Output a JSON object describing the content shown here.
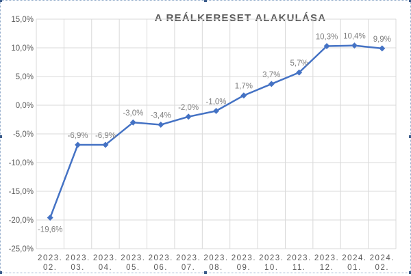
{
  "chart_data": {
    "type": "line",
    "title": "A REÁLKERESET ALAKULÁSA",
    "xlabel": "",
    "ylabel": "",
    "categories": [
      [
        "2023.",
        "02."
      ],
      [
        "2023.",
        "03."
      ],
      [
        "2023.",
        "04."
      ],
      [
        "2023.",
        "05."
      ],
      [
        "2023.",
        "06."
      ],
      [
        "2023.",
        "07."
      ],
      [
        "2023.",
        "08."
      ],
      [
        "2023.",
        "09."
      ],
      [
        "2023.",
        "10."
      ],
      [
        "2023.",
        "11."
      ],
      [
        "2023.",
        "12."
      ],
      [
        "2024.",
        "01."
      ],
      [
        "2024.",
        "02."
      ]
    ],
    "series": [
      {
        "values": [
          -19.6,
          -6.9,
          -6.9,
          -3.0,
          -3.4,
          -2.0,
          -1.0,
          1.7,
          3.7,
          5.7,
          10.3,
          10.4,
          9.9
        ],
        "labels": [
          "-19,6%",
          "-6,9%",
          "-6,9%",
          "-3,0%",
          "-3,4%",
          "-2,0%",
          "-1,0%",
          "1,7%",
          "3,7%",
          "5,7%",
          "10,3%",
          "10,4%",
          "9,9%"
        ],
        "color": "#4472c4"
      }
    ],
    "ylim": [
      -25,
      15
    ],
    "yticks": [
      15,
      10,
      5,
      0,
      -5,
      -10,
      -15,
      -20,
      -25
    ],
    "ytick_labels": [
      "15,0%",
      "10,0%",
      "5,0%",
      "0,0%",
      "-5,0%",
      "-10,0%",
      "-15,0%",
      "-20,0%",
      "-25,0%"
    ],
    "grid": true,
    "gridline_color": "#d9d9d9",
    "text_color": "#595959",
    "label_color": "#7f7f7f"
  }
}
